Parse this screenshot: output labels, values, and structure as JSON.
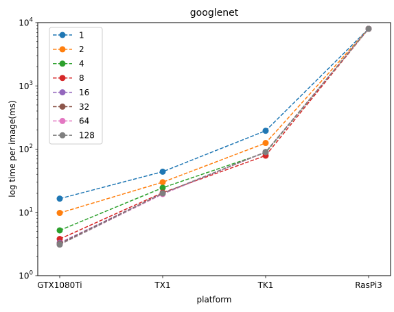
{
  "chart_data": {
    "type": "line",
    "title": "googlenet",
    "xlabel": "platform",
    "ylabel": "log time per image(ms)",
    "yscale": "log",
    "ylim": [
      1,
      10000
    ],
    "ytick_labels": [
      {
        "value": 1,
        "base": "10",
        "exp": "0"
      },
      {
        "value": 10,
        "base": "10",
        "exp": "1"
      },
      {
        "value": 100,
        "base": "10",
        "exp": "2"
      },
      {
        "value": 1000,
        "base": "10",
        "exp": "3"
      },
      {
        "value": 10000,
        "base": "10",
        "exp": "4"
      }
    ],
    "categories": [
      "GTX1080Ti",
      "TX1",
      "TK1",
      "RasPi3"
    ],
    "line_style": "dashed",
    "marker": "circle",
    "grid": false,
    "legend_position": "upper-left",
    "series": [
      {
        "name": "1",
        "color": "#1f77b4",
        "values": [
          16.5,
          44,
          195,
          8000
        ]
      },
      {
        "name": "2",
        "color": "#ff7f0e",
        "values": [
          9.8,
          30,
          125,
          8000
        ]
      },
      {
        "name": "4",
        "color": "#2ca02c",
        "values": [
          5.2,
          24.5,
          88,
          8000
        ]
      },
      {
        "name": "8",
        "color": "#d62728",
        "values": [
          3.8,
          20.5,
          79,
          8000
        ]
      },
      {
        "name": "16",
        "color": "#9467bd",
        "values": [
          3.3,
          20,
          90,
          8000
        ]
      },
      {
        "name": "32",
        "color": "#8c564b",
        "values": [
          3.2,
          20,
          90,
          8000
        ]
      },
      {
        "name": "64",
        "color": "#e377c2",
        "values": [
          3.1,
          19.5,
          90,
          8000
        ]
      },
      {
        "name": "128",
        "color": "#7f7f7f",
        "values": [
          3.1,
          20,
          90,
          8000
        ]
      }
    ]
  }
}
